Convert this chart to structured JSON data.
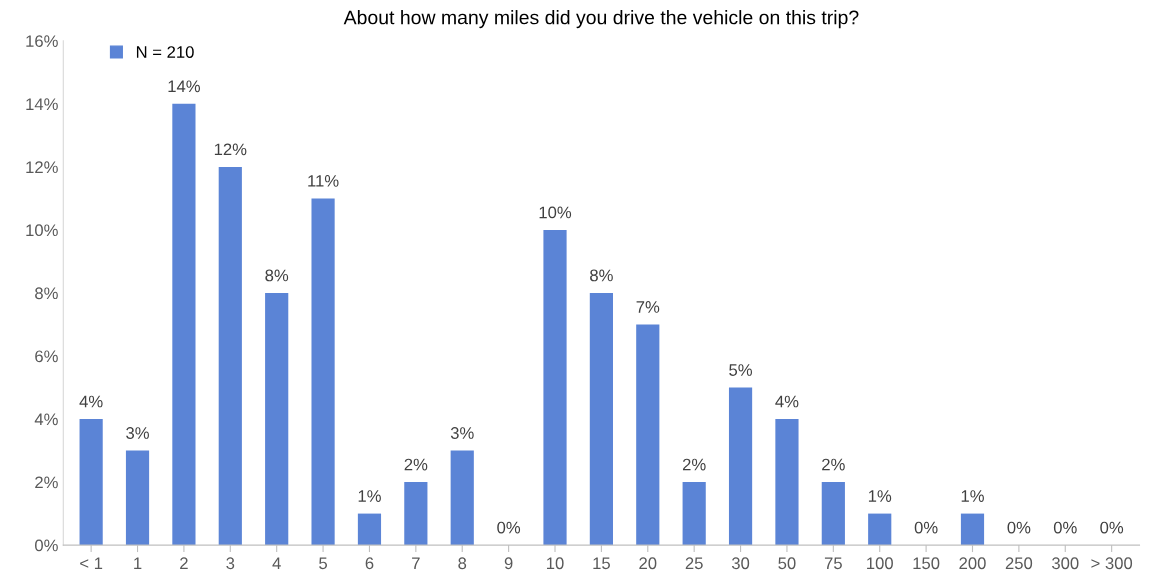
{
  "chart_data": {
    "type": "bar",
    "title": "About how many miles did you drive the vehicle on this trip?",
    "categories": [
      "< 1",
      "1",
      "2",
      "3",
      "4",
      "5",
      "6",
      "7",
      "8",
      "9",
      "10",
      "15",
      "20",
      "25",
      "30",
      "50",
      "75",
      "100",
      "150",
      "200",
      "250",
      "300",
      "> 300"
    ],
    "series": [
      {
        "name": "N = 210",
        "color": "#5b84d6",
        "values": [
          4,
          3,
          14,
          12,
          8,
          11,
          1,
          2,
          3,
          0,
          10,
          8,
          7,
          2,
          5,
          4,
          2,
          1,
          0,
          1,
          0,
          0,
          0
        ],
        "value_labels": [
          "4%",
          "3%",
          "14%",
          "12%",
          "8%",
          "11%",
          "1%",
          "2%",
          "3%",
          "0%",
          "10%",
          "8%",
          "7%",
          "2%",
          "5%",
          "4%",
          "2%",
          "1%",
          "0%",
          "1%",
          "0%",
          "0%",
          "0%"
        ]
      }
    ],
    "ylim": [
      0,
      16
    ],
    "yticks": [
      {
        "value": 0,
        "label": "0%"
      },
      {
        "value": 2,
        "label": "2%"
      },
      {
        "value": 4,
        "label": "4%"
      },
      {
        "value": 6,
        "label": "6%"
      },
      {
        "value": 8,
        "label": "8%"
      },
      {
        "value": 10,
        "label": "10%"
      },
      {
        "value": 12,
        "label": "12%"
      },
      {
        "value": 14,
        "label": "14%"
      },
      {
        "value": 16,
        "label": "16%"
      }
    ],
    "grid": false,
    "legend": "top left"
  }
}
